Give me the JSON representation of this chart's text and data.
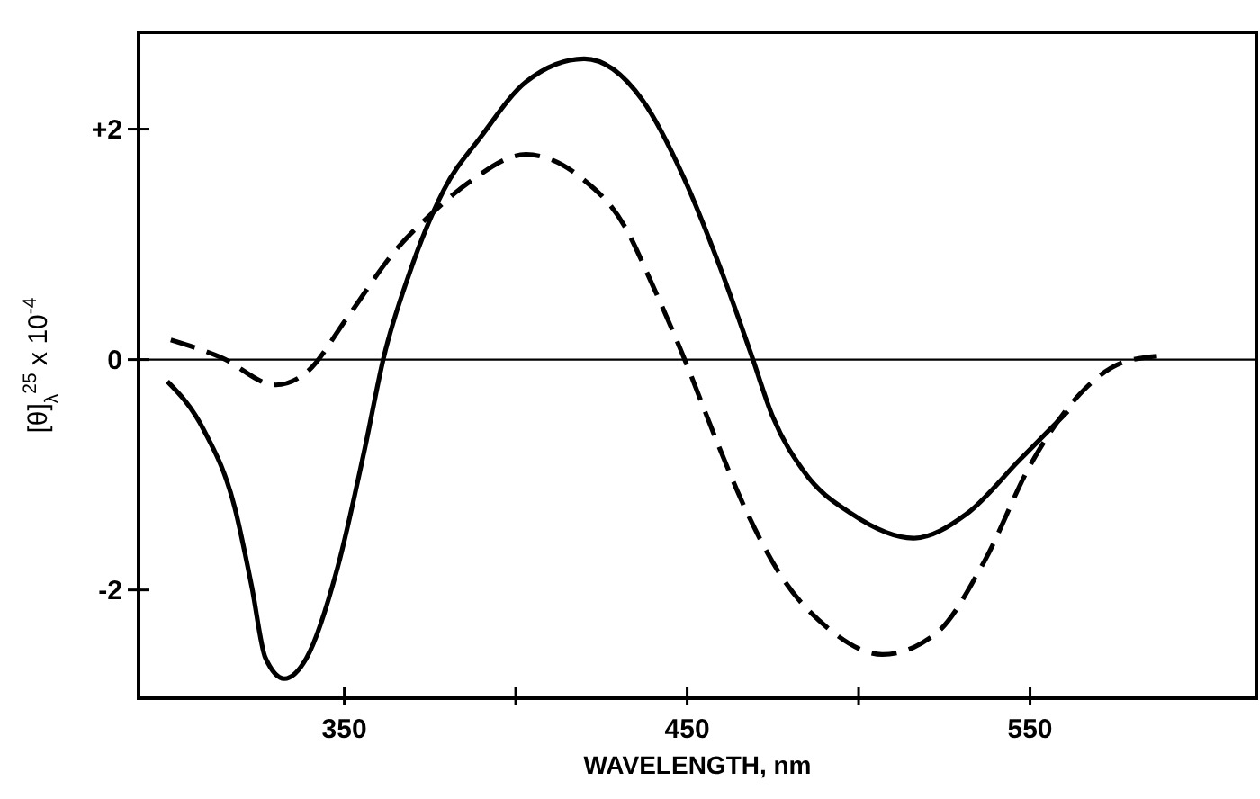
{
  "chart_data": {
    "type": "line",
    "xlabel": "WAVELENGTH, nm",
    "ylabel": "[θ]$_{λ}$$^{25}$ x 10$^{-4}$",
    "xlim": [
      290,
      616
    ],
    "xticks": [
      350,
      {
        "value": 400,
        "label": null
      },
      450,
      {
        "value": 500,
        "label": null
      },
      550
    ],
    "ylim": [
      -2.94,
      2.84
    ],
    "yticks": [
      {
        "value": 2,
        "label": "+2"
      },
      0,
      {
        "value": -2,
        "label": "-2"
      }
    ],
    "grid": false,
    "marker": "none",
    "ref_lines": [
      {
        "axis": "y",
        "value": 0,
        "color": "#000000",
        "line_style": "solid"
      }
    ],
    "series": [
      {
        "color": "#000000",
        "line_style": "solid",
        "x": [
          298.4,
          309,
          318,
          323,
          327,
          332.5,
          339,
          348,
          356,
          361.5,
          369,
          379,
          390,
          403,
          420,
          437,
          449,
          459.6,
          468.5,
          475,
          484,
          498,
          516,
          531.5,
          547,
          561
        ],
        "values": [
          -0.19,
          -0.61,
          -1.28,
          -1.97,
          -2.59,
          -2.77,
          -2.59,
          -1.81,
          -0.77,
          0.02,
          0.75,
          1.47,
          1.94,
          2.41,
          2.61,
          2.25,
          1.58,
          0.8,
          0.06,
          -0.5,
          -0.97,
          -1.34,
          -1.55,
          -1.34,
          -0.87,
          -0.45
        ]
      },
      {
        "color": "#000000",
        "line_style": "dashed",
        "x": [
          299.4,
          314,
          330,
          339,
          351,
          365,
          375.6,
          386,
          403,
          419,
          431.7,
          440,
          449,
          458.5,
          466.7,
          477,
          491,
          507,
          522.5,
          536.7,
          550,
          564.5,
          576.6,
          587
        ],
        "values": [
          0.17,
          0.02,
          -0.22,
          -0.11,
          0.37,
          0.95,
          1.27,
          1.53,
          1.78,
          1.58,
          1.16,
          0.64,
          0.02,
          -0.7,
          -1.28,
          -1.86,
          -2.33,
          -2.56,
          -2.38,
          -1.75,
          -0.92,
          -0.3,
          -0.03,
          0.03
        ]
      }
    ]
  }
}
